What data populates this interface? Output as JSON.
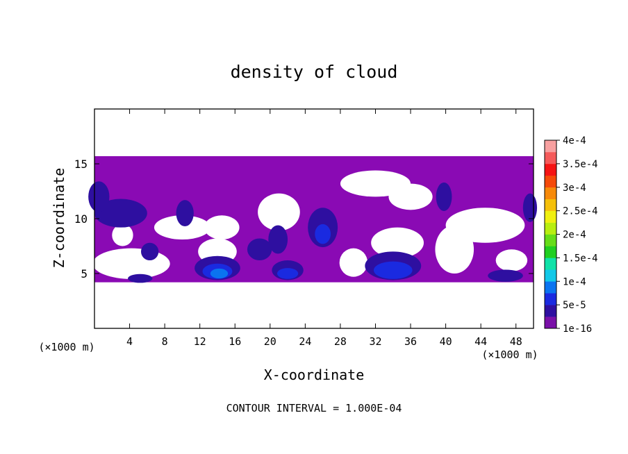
{
  "chart_data": {
    "type": "heatmap",
    "title": "density of cloud",
    "xlabel": "X-coordinate",
    "ylabel": "Z-coordinate",
    "x_unit_left": "(×1000 m)",
    "x_unit_right": "(×1000 m)",
    "xlim": [
      0,
      50
    ],
    "ylim": [
      0,
      20
    ],
    "xticks": [
      4,
      8,
      12,
      16,
      20,
      24,
      28,
      32,
      36,
      40,
      44,
      48
    ],
    "yticks": [
      5,
      10,
      15
    ],
    "footnote": "CONTOUR INTERVAL = 1.000E-04",
    "colorbar": {
      "labels": [
        "1e-16",
        "5e-5",
        "1e-4",
        "1.5e-4",
        "2e-4",
        "2.5e-4",
        "3e-4",
        "3.5e-4",
        "4e-4"
      ],
      "colors": [
        "#7a10a8",
        "#2e0fa0",
        "#1a2ae0",
        "#0a74f0",
        "#12c8e8",
        "#10e2a8",
        "#20cf20",
        "#66dd18",
        "#b8ee10",
        "#f0f010",
        "#f5c00a",
        "#f78a0a",
        "#f54a0a",
        "#f51414",
        "#f55a5a",
        "#f7a0a0"
      ]
    },
    "cloud_layer": {
      "z_base": 4.2,
      "z_top": 15.7,
      "color": "#8a0ab4"
    },
    "clear_regions": [
      [
        10.0,
        9.2,
        3.2,
        1.1
      ],
      [
        14.5,
        9.2,
        2.0,
        1.1
      ],
      [
        21.0,
        10.6,
        2.4,
        1.7
      ],
      [
        32.0,
        13.2,
        4.0,
        1.2
      ],
      [
        36.0,
        12.0,
        2.5,
        1.2
      ],
      [
        44.5,
        9.4,
        4.5,
        1.6
      ],
      [
        41.0,
        7.2,
        2.2,
        2.2
      ],
      [
        34.5,
        7.8,
        3.0,
        1.4
      ],
      [
        29.5,
        6.0,
        1.6,
        1.3
      ],
      [
        4.2,
        5.9,
        4.4,
        1.4
      ],
      [
        14.0,
        7.0,
        2.2,
        1.2
      ],
      [
        3.2,
        8.5,
        1.2,
        1.0
      ],
      [
        47.5,
        6.2,
        1.8,
        1.0
      ]
    ],
    "cores": [
      [
        14.0,
        5.5,
        2.6,
        1.1,
        1
      ],
      [
        14.0,
        5.2,
        1.7,
        0.7,
        2
      ],
      [
        14.2,
        5.0,
        1.0,
        0.45,
        3
      ],
      [
        22.0,
        5.3,
        1.8,
        0.9,
        1
      ],
      [
        22.0,
        5.0,
        1.2,
        0.5,
        2
      ],
      [
        34.0,
        5.7,
        3.2,
        1.3,
        1
      ],
      [
        34.0,
        5.3,
        2.2,
        0.8,
        2
      ],
      [
        5.2,
        4.55,
        1.4,
        0.4,
        1
      ],
      [
        46.8,
        4.8,
        2.0,
        0.55,
        1
      ],
      [
        18.8,
        7.2,
        1.4,
        1.0,
        1
      ],
      [
        20.9,
        8.1,
        1.1,
        1.3,
        1
      ],
      [
        26.0,
        9.2,
        1.7,
        1.8,
        1
      ],
      [
        26.0,
        8.6,
        0.9,
        0.9,
        2
      ],
      [
        3.0,
        10.5,
        3.0,
        1.3,
        1
      ],
      [
        0.5,
        12.0,
        1.2,
        1.4,
        1
      ],
      [
        10.3,
        10.5,
        1.0,
        1.2,
        1
      ],
      [
        39.8,
        12.0,
        0.9,
        1.3,
        1
      ],
      [
        49.6,
        11.0,
        0.8,
        1.3,
        1
      ],
      [
        6.3,
        7.0,
        1.0,
        0.8,
        1
      ]
    ]
  }
}
